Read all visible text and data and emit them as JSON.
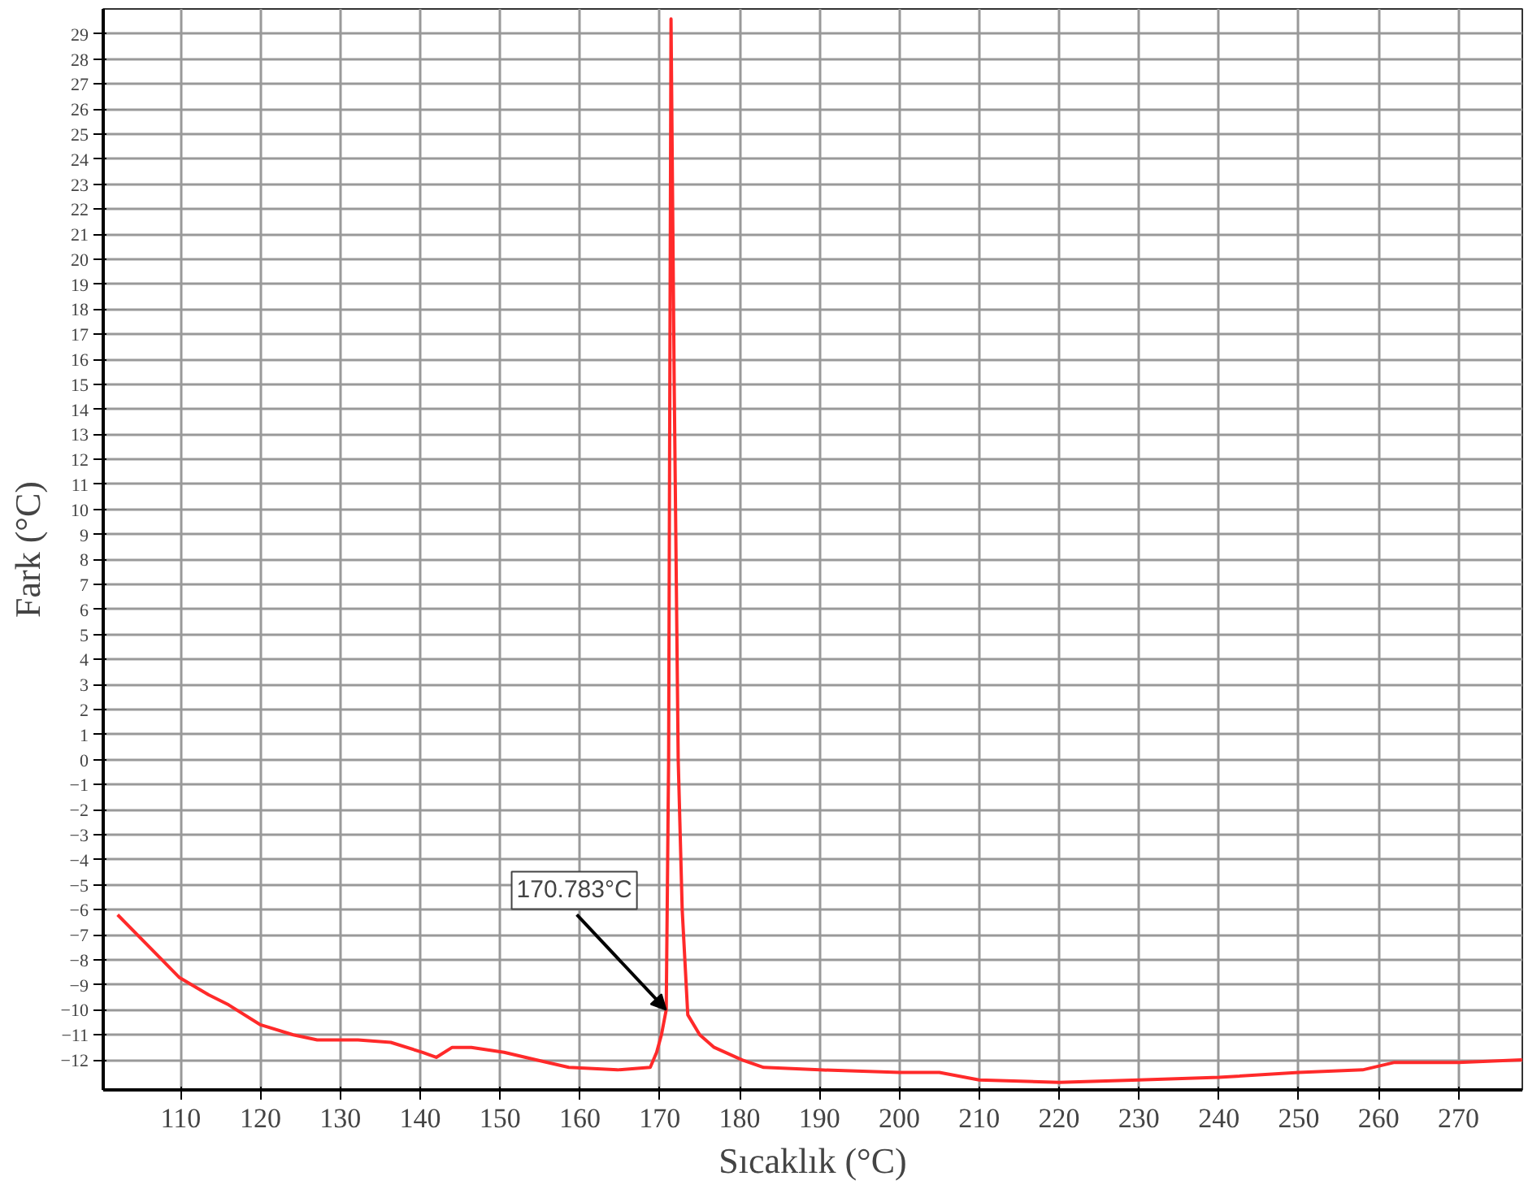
{
  "chart_data": {
    "type": "line",
    "xlabel": "Sıcaklık (°C)",
    "ylabel": "Fark (°C)",
    "x": [
      102.1,
      105.8,
      109.8,
      113.5,
      116,
      120,
      124.1,
      127.1,
      132.2,
      136.3,
      140.3,
      142,
      144,
      146.4,
      150.5,
      154.5,
      158.6,
      164.7,
      168.8,
      169.6,
      170.2,
      170.8,
      171.1,
      171.4,
      171.8,
      172.3,
      172.8,
      173.5,
      175,
      176.8,
      180.3,
      183,
      190,
      200,
      205,
      210,
      220,
      230,
      240,
      250,
      258,
      262,
      270,
      278
    ],
    "series": [
      {
        "color": "#ff2a2a",
        "values": [
          -6.2,
          -7.4,
          -8.7,
          -9.4,
          -9.8,
          -10.6,
          -11.0,
          -11.2,
          -11.2,
          -11.3,
          -11.7,
          -11.9,
          -11.5,
          -11.5,
          -11.7,
          -12.0,
          -12.3,
          -12.4,
          -12.3,
          -11.7,
          -11.0,
          -10.0,
          0,
          29.6,
          15,
          0,
          -6,
          -10.2,
          -11.0,
          -11.5,
          -12.0,
          -12.3,
          -12.4,
          -12.5,
          -12.5,
          -12.8,
          -12.9,
          -12.8,
          -12.7,
          -12.5,
          -12.4,
          -12.1,
          -12.1,
          -12.0
        ]
      }
    ],
    "xlim": [
      100.3,
      278
    ],
    "ylim": [
      -13.2,
      30
    ],
    "xticks": [
      110,
      120,
      130,
      140,
      150,
      160,
      170,
      180,
      190,
      200,
      210,
      220,
      230,
      240,
      250,
      260,
      270
    ],
    "yticks": [
      -12,
      -11,
      -10,
      -9,
      -8,
      -7,
      -6,
      -5,
      -4,
      -3,
      -2,
      -1,
      0,
      1,
      2,
      3,
      4,
      5,
      6,
      7,
      8,
      9,
      10,
      11,
      12,
      13,
      14,
      15,
      16,
      17,
      18,
      19,
      20,
      21,
      22,
      23,
      24,
      25,
      26,
      27,
      28,
      29
    ],
    "grid": true,
    "marker": "none",
    "line_style": "solid",
    "annotations": [
      {
        "text": "170.783°C",
        "x": 170.783,
        "y": -10
      }
    ]
  }
}
